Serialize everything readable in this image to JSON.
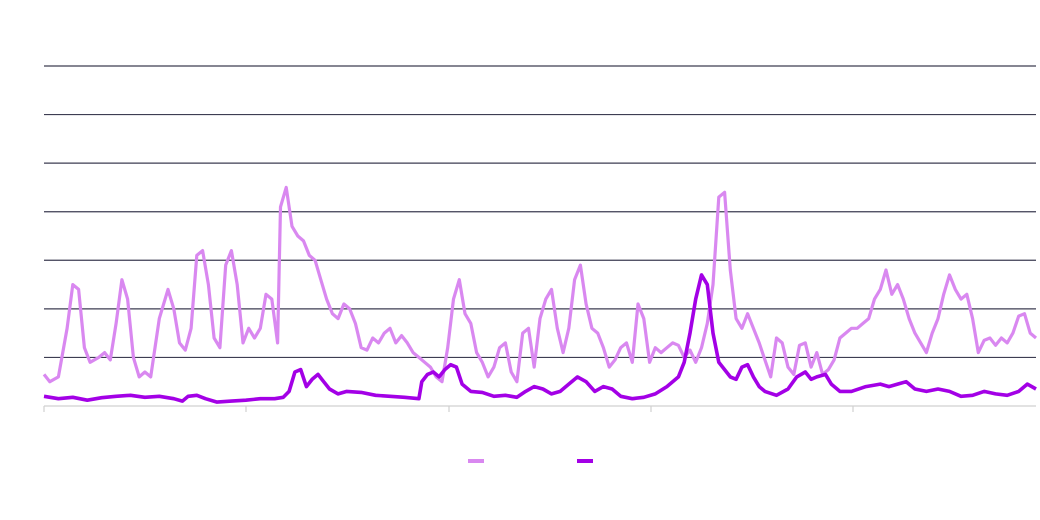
{
  "chart_data": {
    "type": "line",
    "title": "",
    "xlabel": "",
    "ylabel": "",
    "ylim": [
      0,
      7
    ],
    "grid": true,
    "legend": "bottom-center",
    "colors": {
      "series_light": "#d988f0",
      "series_dark": "#a300e6",
      "grid": "#3d3d52",
      "axis": "#d0d0d0"
    },
    "series": [
      {
        "color": "#d988f0",
        "points": [
          [
            0,
            0.65
          ],
          [
            2,
            0.5
          ],
          [
            5,
            0.6
          ],
          [
            8,
            1.6
          ],
          [
            10,
            2.5
          ],
          [
            12,
            2.4
          ],
          [
            14,
            1.2
          ],
          [
            16,
            0.9
          ],
          [
            19,
            1.0
          ],
          [
            21,
            1.1
          ],
          [
            23,
            0.95
          ],
          [
            25,
            1.7
          ],
          [
            27,
            2.6
          ],
          [
            29,
            2.2
          ],
          [
            31,
            1.0
          ],
          [
            33,
            0.6
          ],
          [
            35,
            0.7
          ],
          [
            37,
            0.6
          ],
          [
            40,
            1.8
          ],
          [
            43,
            2.4
          ],
          [
            45,
            2.0
          ],
          [
            47,
            1.3
          ],
          [
            49,
            1.15
          ],
          [
            51,
            1.6
          ],
          [
            53,
            3.1
          ],
          [
            55,
            3.2
          ],
          [
            57,
            2.5
          ],
          [
            59,
            1.4
          ],
          [
            61,
            1.2
          ],
          [
            63,
            2.9
          ],
          [
            65,
            3.2
          ],
          [
            67,
            2.5
          ],
          [
            69,
            1.3
          ],
          [
            71,
            1.6
          ],
          [
            73,
            1.4
          ],
          [
            75,
            1.6
          ],
          [
            77,
            2.3
          ],
          [
            79,
            2.2
          ],
          [
            81,
            1.3
          ],
          [
            82,
            4.1
          ],
          [
            84,
            4.5
          ],
          [
            86,
            3.7
          ],
          [
            88,
            3.5
          ],
          [
            90,
            3.4
          ],
          [
            92,
            3.1
          ],
          [
            94,
            3.0
          ],
          [
            96,
            2.6
          ],
          [
            98,
            2.2
          ],
          [
            100,
            1.9
          ],
          [
            102,
            1.8
          ],
          [
            104,
            2.1
          ],
          [
            106,
            2.0
          ],
          [
            108,
            1.7
          ],
          [
            110,
            1.2
          ],
          [
            112,
            1.15
          ],
          [
            114,
            1.4
          ],
          [
            116,
            1.3
          ],
          [
            118,
            1.5
          ],
          [
            120,
            1.6
          ],
          [
            122,
            1.3
          ],
          [
            124,
            1.45
          ],
          [
            126,
            1.3
          ],
          [
            128,
            1.1
          ],
          [
            130,
            1.0
          ],
          [
            132,
            0.9
          ],
          [
            134,
            0.8
          ],
          [
            136,
            0.6
          ],
          [
            138,
            0.5
          ],
          [
            140,
            1.2
          ],
          [
            142,
            2.2
          ],
          [
            144,
            2.6
          ],
          [
            146,
            1.9
          ],
          [
            148,
            1.7
          ],
          [
            150,
            1.1
          ],
          [
            152,
            0.9
          ],
          [
            154,
            0.6
          ],
          [
            156,
            0.8
          ],
          [
            158,
            1.2
          ],
          [
            160,
            1.3
          ],
          [
            162,
            0.7
          ],
          [
            164,
            0.5
          ],
          [
            166,
            1.5
          ],
          [
            168,
            1.6
          ],
          [
            170,
            0.8
          ],
          [
            172,
            1.8
          ],
          [
            174,
            2.2
          ],
          [
            176,
            2.4
          ],
          [
            178,
            1.6
          ],
          [
            180,
            1.1
          ],
          [
            182,
            1.6
          ],
          [
            184,
            2.6
          ],
          [
            186,
            2.9
          ],
          [
            188,
            2.1
          ],
          [
            190,
            1.6
          ],
          [
            192,
            1.5
          ],
          [
            194,
            1.2
          ],
          [
            196,
            0.8
          ],
          [
            198,
            0.95
          ],
          [
            200,
            1.2
          ],
          [
            202,
            1.3
          ],
          [
            204,
            0.9
          ],
          [
            206,
            2.1
          ],
          [
            208,
            1.8
          ],
          [
            210,
            0.9
          ],
          [
            212,
            1.2
          ],
          [
            214,
            1.1
          ],
          [
            216,
            1.2
          ],
          [
            218,
            1.3
          ],
          [
            220,
            1.25
          ],
          [
            222,
            1.0
          ],
          [
            224,
            1.15
          ],
          [
            226,
            0.9
          ],
          [
            228,
            1.2
          ],
          [
            230,
            1.7
          ],
          [
            232,
            2.5
          ],
          [
            234,
            4.3
          ],
          [
            236,
            4.4
          ],
          [
            238,
            2.8
          ],
          [
            240,
            1.8
          ],
          [
            242,
            1.6
          ],
          [
            244,
            1.9
          ],
          [
            246,
            1.6
          ],
          [
            248,
            1.3
          ],
          [
            250,
            0.95
          ],
          [
            252,
            0.6
          ],
          [
            254,
            1.4
          ],
          [
            256,
            1.3
          ],
          [
            258,
            0.8
          ],
          [
            260,
            0.65
          ],
          [
            262,
            1.25
          ],
          [
            264,
            1.3
          ],
          [
            266,
            0.8
          ],
          [
            268,
            1.1
          ],
          [
            270,
            0.65
          ],
          [
            272,
            0.75
          ],
          [
            274,
            0.95
          ],
          [
            276,
            1.4
          ],
          [
            278,
            1.5
          ],
          [
            280,
            1.6
          ],
          [
            282,
            1.6
          ],
          [
            284,
            1.7
          ],
          [
            286,
            1.8
          ],
          [
            288,
            2.2
          ],
          [
            290,
            2.4
          ],
          [
            292,
            2.8
          ],
          [
            294,
            2.3
          ],
          [
            296,
            2.5
          ],
          [
            298,
            2.2
          ],
          [
            300,
            1.8
          ],
          [
            302,
            1.5
          ],
          [
            304,
            1.3
          ],
          [
            306,
            1.1
          ],
          [
            308,
            1.5
          ],
          [
            310,
            1.8
          ],
          [
            312,
            2.3
          ],
          [
            314,
            2.7
          ],
          [
            316,
            2.4
          ],
          [
            318,
            2.2
          ],
          [
            320,
            2.3
          ],
          [
            322,
            1.8
          ],
          [
            324,
            1.1
          ],
          [
            326,
            1.35
          ],
          [
            328,
            1.4
          ],
          [
            330,
            1.25
          ],
          [
            332,
            1.4
          ],
          [
            334,
            1.3
          ],
          [
            336,
            1.5
          ],
          [
            338,
            1.85
          ],
          [
            340,
            1.9
          ],
          [
            342,
            1.5
          ],
          [
            344,
            1.4
          ]
        ]
      },
      {
        "color": "#a300e6",
        "points": [
          [
            0,
            0.2
          ],
          [
            5,
            0.15
          ],
          [
            10,
            0.18
          ],
          [
            15,
            0.12
          ],
          [
            20,
            0.17
          ],
          [
            25,
            0.2
          ],
          [
            30,
            0.22
          ],
          [
            35,
            0.18
          ],
          [
            40,
            0.2
          ],
          [
            45,
            0.15
          ],
          [
            48,
            0.1
          ],
          [
            50,
            0.2
          ],
          [
            53,
            0.22
          ],
          [
            56,
            0.15
          ],
          [
            60,
            0.08
          ],
          [
            65,
            0.1
          ],
          [
            70,
            0.12
          ],
          [
            75,
            0.15
          ],
          [
            80,
            0.15
          ],
          [
            83,
            0.18
          ],
          [
            85,
            0.3
          ],
          [
            87,
            0.7
          ],
          [
            89,
            0.75
          ],
          [
            91,
            0.4
          ],
          [
            93,
            0.55
          ],
          [
            95,
            0.65
          ],
          [
            97,
            0.5
          ],
          [
            99,
            0.35
          ],
          [
            102,
            0.25
          ],
          [
            105,
            0.3
          ],
          [
            110,
            0.28
          ],
          [
            115,
            0.22
          ],
          [
            120,
            0.2
          ],
          [
            125,
            0.18
          ],
          [
            130,
            0.15
          ],
          [
            131,
            0.5
          ],
          [
            133,
            0.65
          ],
          [
            135,
            0.7
          ],
          [
            137,
            0.6
          ],
          [
            139,
            0.75
          ],
          [
            141,
            0.85
          ],
          [
            143,
            0.8
          ],
          [
            145,
            0.45
          ],
          [
            148,
            0.3
          ],
          [
            152,
            0.28
          ],
          [
            156,
            0.2
          ],
          [
            160,
            0.22
          ],
          [
            164,
            0.18
          ],
          [
            167,
            0.3
          ],
          [
            170,
            0.4
          ],
          [
            173,
            0.35
          ],
          [
            176,
            0.25
          ],
          [
            179,
            0.3
          ],
          [
            182,
            0.45
          ],
          [
            185,
            0.6
          ],
          [
            188,
            0.5
          ],
          [
            191,
            0.3
          ],
          [
            194,
            0.4
          ],
          [
            197,
            0.35
          ],
          [
            200,
            0.2
          ],
          [
            204,
            0.15
          ],
          [
            208,
            0.18
          ],
          [
            212,
            0.25
          ],
          [
            216,
            0.4
          ],
          [
            220,
            0.6
          ],
          [
            222,
            0.9
          ],
          [
            224,
            1.5
          ],
          [
            226,
            2.2
          ],
          [
            228,
            2.7
          ],
          [
            230,
            2.5
          ],
          [
            232,
            1.5
          ],
          [
            234,
            0.9
          ],
          [
            236,
            0.75
          ],
          [
            238,
            0.6
          ],
          [
            240,
            0.55
          ],
          [
            242,
            0.8
          ],
          [
            244,
            0.85
          ],
          [
            246,
            0.6
          ],
          [
            248,
            0.4
          ],
          [
            250,
            0.3
          ],
          [
            254,
            0.22
          ],
          [
            258,
            0.35
          ],
          [
            261,
            0.6
          ],
          [
            264,
            0.7
          ],
          [
            266,
            0.55
          ],
          [
            268,
            0.6
          ],
          [
            271,
            0.65
          ],
          [
            273,
            0.45
          ],
          [
            276,
            0.3
          ],
          [
            280,
            0.3
          ],
          [
            285,
            0.4
          ],
          [
            290,
            0.45
          ],
          [
            293,
            0.4
          ],
          [
            296,
            0.45
          ],
          [
            299,
            0.5
          ],
          [
            302,
            0.35
          ],
          [
            306,
            0.3
          ],
          [
            310,
            0.35
          ],
          [
            314,
            0.3
          ],
          [
            318,
            0.2
          ],
          [
            322,
            0.22
          ],
          [
            326,
            0.3
          ],
          [
            330,
            0.25
          ],
          [
            334,
            0.22
          ],
          [
            338,
            0.3
          ],
          [
            341,
            0.45
          ],
          [
            344,
            0.35
          ]
        ]
      }
    ]
  }
}
